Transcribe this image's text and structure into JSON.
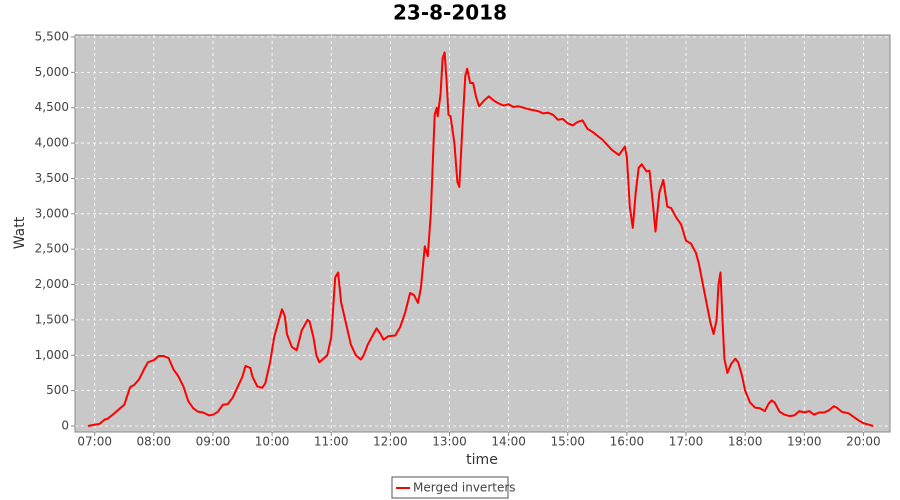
{
  "chart_data": {
    "type": "line",
    "title": "23-8-2018",
    "x_label": "time",
    "y_label": "Watt",
    "x": [
      "06:53",
      "07:05",
      "07:10",
      "07:13",
      "07:20",
      "07:25",
      "07:30",
      "07:36",
      "07:40",
      "07:45",
      "07:50",
      "07:54",
      "08:00",
      "08:05",
      "08:10",
      "08:15",
      "08:20",
      "08:25",
      "08:30",
      "08:35",
      "08:40",
      "08:45",
      "08:50",
      "08:56",
      "09:00",
      "09:05",
      "09:10",
      "09:15",
      "09:20",
      "09:25",
      "09:30",
      "09:33",
      "09:38",
      "09:40",
      "09:45",
      "09:50",
      "09:53",
      "09:58",
      "10:02",
      "10:06",
      "10:10",
      "10:13",
      "10:15",
      "10:20",
      "10:25",
      "10:30",
      "10:36",
      "10:38",
      "10:42",
      "10:45",
      "10:48",
      "10:52",
      "10:56",
      "11:00",
      "11:04",
      "11:07",
      "11:10",
      "11:15",
      "11:20",
      "11:25",
      "11:30",
      "11:33",
      "11:37",
      "11:46",
      "11:50",
      "11:53",
      "11:58",
      "12:05",
      "12:10",
      "12:15",
      "12:20",
      "12:24",
      "12:28",
      "12:31",
      "12:35",
      "12:38",
      "12:41",
      "12:45",
      "12:47",
      "12:48",
      "12:51",
      "12:53",
      "12:55",
      "12:57",
      "12:59",
      "13:01",
      "13:05",
      "13:08",
      "13:10",
      "13:13",
      "13:16",
      "13:18",
      "13:21",
      "13:24",
      "13:27",
      "13:30",
      "13:35",
      "13:40",
      "13:45",
      "13:50",
      "13:55",
      "14:00",
      "14:05",
      "14:10",
      "14:20",
      "14:30",
      "14:35",
      "14:40",
      "14:45",
      "14:50",
      "14:55",
      "15:00",
      "15:05",
      "15:10",
      "15:15",
      "15:20",
      "15:25",
      "15:35",
      "15:45",
      "15:52",
      "15:58",
      "16:00",
      "16:03",
      "16:06",
      "16:09",
      "16:12",
      "16:15",
      "16:20",
      "16:23",
      "16:26",
      "16:29",
      "16:33",
      "16:37",
      "16:41",
      "16:45",
      "16:50",
      "16:55",
      "17:00",
      "17:05",
      "17:10",
      "17:13",
      "17:20",
      "17:25",
      "17:28",
      "17:31",
      "17:33",
      "17:35",
      "17:37",
      "17:39",
      "17:42",
      "17:46",
      "17:50",
      "17:53",
      "17:57",
      "18:00",
      "18:05",
      "18:10",
      "18:15",
      "18:20",
      "18:24",
      "18:27",
      "18:30",
      "18:35",
      "18:40",
      "18:45",
      "18:50",
      "18:55",
      "19:00",
      "19:05",
      "19:10",
      "19:15",
      "19:20",
      "19:25",
      "19:30",
      "19:33",
      "19:38",
      "19:45",
      "19:50",
      "19:55",
      "20:00",
      "20:05",
      "20:10"
    ],
    "series": [
      {
        "name": "Merged inverters",
        "color": "#ff0000",
        "values": [
          0,
          30,
          90,
          100,
          180,
          240,
          300,
          550,
          580,
          660,
          800,
          900,
          930,
          990,
          990,
          960,
          800,
          700,
          560,
          350,
          250,
          200,
          190,
          150,
          160,
          200,
          300,
          310,
          400,
          550,
          700,
          850,
          820,
          700,
          560,
          540,
          600,
          900,
          1250,
          1450,
          1650,
          1550,
          1300,
          1120,
          1070,
          1350,
          1500,
          1480,
          1250,
          1000,
          900,
          950,
          1000,
          1250,
          2100,
          2170,
          1750,
          1450,
          1150,
          1000,
          940,
          1000,
          1150,
          1380,
          1300,
          1220,
          1270,
          1280,
          1400,
          1600,
          1880,
          1850,
          1740,
          1950,
          2540,
          2400,
          3000,
          4400,
          4500,
          4380,
          4700,
          5200,
          5280,
          4900,
          4400,
          4380,
          4000,
          3450,
          3380,
          4200,
          4950,
          5050,
          4850,
          4850,
          4650,
          4520,
          4600,
          4660,
          4600,
          4560,
          4530,
          4550,
          4510,
          4520,
          4480,
          4450,
          4420,
          4430,
          4400,
          4330,
          4340,
          4280,
          4250,
          4300,
          4320,
          4200,
          4160,
          4050,
          3900,
          3830,
          3950,
          3800,
          3100,
          2800,
          3300,
          3650,
          3700,
          3600,
          3610,
          3200,
          2750,
          3300,
          3480,
          3100,
          3080,
          2950,
          2850,
          2620,
          2580,
          2450,
          2300,
          1800,
          1450,
          1300,
          1500,
          2000,
          2170,
          1500,
          950,
          750,
          880,
          950,
          900,
          700,
          500,
          330,
          260,
          250,
          210,
          320,
          360,
          330,
          200,
          160,
          140,
          150,
          210,
          190,
          210,
          160,
          190,
          190,
          220,
          280,
          260,
          200,
          180,
          130,
          80,
          40,
          20,
          0
        ]
      }
    ],
    "xlim": [
      "06:40",
      "20:27"
    ],
    "xticks": [
      "07:00",
      "08:00",
      "09:00",
      "10:00",
      "11:00",
      "12:00",
      "13:00",
      "14:00",
      "15:00",
      "16:00",
      "17:00",
      "18:00",
      "19:00",
      "20:00"
    ],
    "ylim": [
      -85,
      5528
    ],
    "yticks": [
      0,
      500,
      {
        "value": 1000,
        "label": "1,000"
      },
      {
        "value": 1500,
        "label": "1,500"
      },
      {
        "value": 2000,
        "label": "2,000"
      },
      {
        "value": 2500,
        "label": "2,500"
      },
      {
        "value": 3000,
        "label": "3,000"
      },
      {
        "value": 3500,
        "label": "3,500"
      },
      {
        "value": 4000,
        "label": "4,000"
      },
      {
        "value": 4500,
        "label": "4,500"
      },
      {
        "value": 5000,
        "label": "5,000"
      },
      {
        "value": 5500,
        "label": "5,500"
      }
    ],
    "grid": true
  }
}
